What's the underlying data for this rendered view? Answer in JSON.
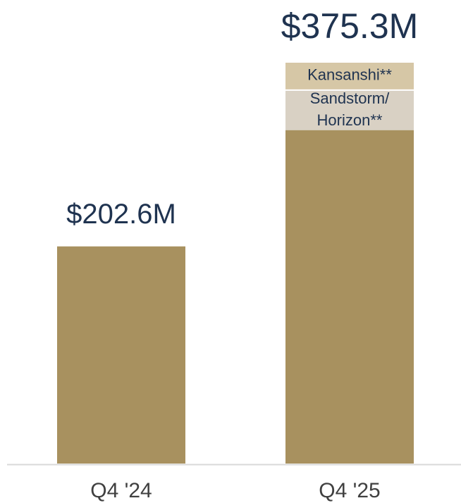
{
  "chart_data": {
    "type": "bar",
    "stacked": true,
    "categories": [
      "Q4 '24",
      "Q4 '25"
    ],
    "total_labels": [
      "$202.6M",
      "$375.3M"
    ],
    "totals": [
      202.6,
      375.3
    ],
    "segments": [
      {
        "label": "",
        "values": [
          202.6,
          311.1
        ],
        "color": "#a8915f"
      },
      {
        "label": "Sandstorm/\nHorizon**",
        "values": [
          0,
          38.0
        ],
        "color": "#d9d1c4"
      },
      {
        "label": "Kansanshi**",
        "values": [
          0,
          26.2
        ],
        "color": "#d6c7a6"
      }
    ],
    "ylim": [
      0,
      375.3
    ],
    "grid": false,
    "colors": {
      "axis": "#d9d9d9",
      "label_text": "#1f3350",
      "category_text": "#404040"
    }
  }
}
